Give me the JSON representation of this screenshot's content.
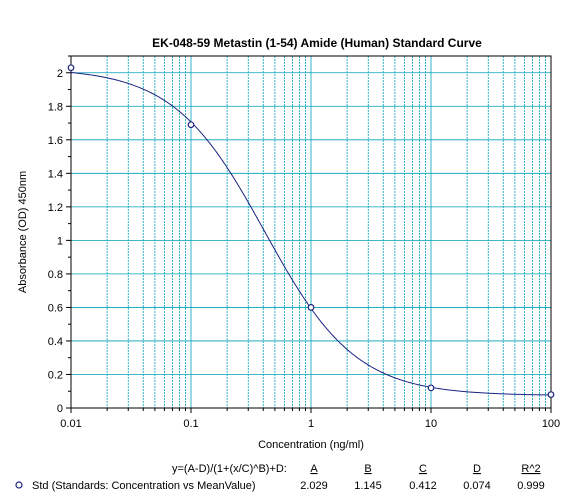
{
  "chart_data": {
    "type": "scatter",
    "title": "EK-048-59 Metastin (1-54) Amide (Human) Standard Curve",
    "xlabel": "Concentration (ng/ml)",
    "ylabel": "Absorbance (OD) 450nm",
    "x_scale": "log",
    "xlim": [
      0.01,
      100
    ],
    "ylim": [
      0,
      2.1
    ],
    "x_ticks": [
      "0.01",
      "0.1",
      "1",
      "10",
      "100"
    ],
    "y_ticks": [
      "0",
      "0.2",
      "0.4",
      "0.6",
      "0.8",
      "1",
      "1.2",
      "1.4",
      "1.6",
      "1.8",
      "2"
    ],
    "grid": true,
    "series": [
      {
        "name": "Std (Standards: Concentration vs MeanValue)",
        "x": [
          0.01,
          0.1,
          1,
          10,
          100
        ],
        "y": [
          2.03,
          1.69,
          0.6,
          0.12,
          0.08
        ]
      }
    ],
    "fit": {
      "equation": "y=(A-D)/(1+(x/C)^B)+D:",
      "headers": [
        "A",
        "B",
        "C",
        "D",
        "R^2"
      ],
      "values": [
        "2.029",
        "1.145",
        "0.412",
        "0.074",
        "0.999"
      ],
      "A": 2.029,
      "B": 1.145,
      "C": 0.412,
      "D": 0.074
    },
    "colors": {
      "curve": "#1a237e",
      "grid": "#00a0b8",
      "axis": "#000000"
    }
  }
}
